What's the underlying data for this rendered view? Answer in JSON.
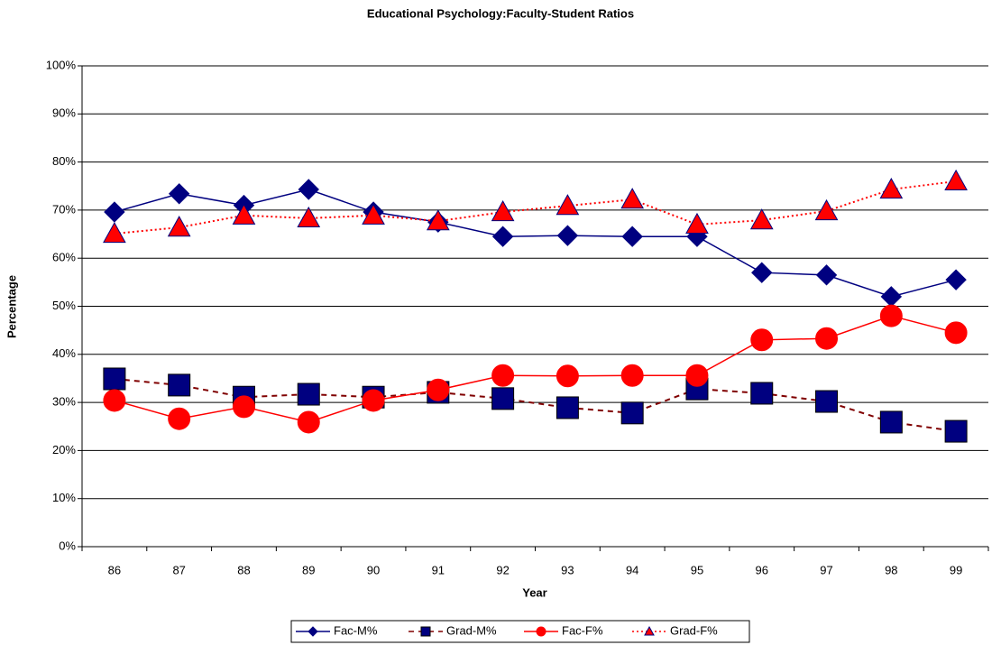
{
  "chart_data": {
    "type": "line",
    "title": "Educational Psychology:Faculty-Student Ratios",
    "x_label": "Year",
    "y_label": "Percentage",
    "categories": [
      "86",
      "87",
      "88",
      "89",
      "90",
      "91",
      "92",
      "93",
      "94",
      "95",
      "96",
      "97",
      "98",
      "99"
    ],
    "series": [
      {
        "name": "Fac-M%",
        "color": "#000080",
        "line_color": "#000080",
        "line_style": "solid",
        "marker": "diamond",
        "values": [
          69.6,
          73.4,
          71,
          74.3,
          69.6,
          67.5,
          64.5,
          64.7,
          64.5,
          64.5,
          57,
          56.5,
          52,
          55.5
        ]
      },
      {
        "name": "Grad-M%",
        "color": "#000080",
        "line_color": "#800000",
        "line_style": "dashed",
        "marker": "square",
        "values": [
          34.9,
          33.6,
          31.1,
          31.7,
          31.1,
          32.1,
          30.8,
          28.9,
          27.8,
          32.8,
          31.9,
          30.2,
          25.9,
          24
        ]
      },
      {
        "name": "Fac-F%",
        "color": "#ff0000",
        "line_color": "#ff0000",
        "line_style": "solid",
        "marker": "circle",
        "values": [
          30.4,
          26.6,
          29.1,
          25.9,
          30.4,
          32.6,
          35.6,
          35.5,
          35.6,
          35.6,
          43,
          43.3,
          48,
          44.5
        ]
      },
      {
        "name": "Grad-F%",
        "color": "#ff0000",
        "line_color": "#ff0000",
        "line_style": "dotted",
        "marker": "triangle",
        "values": [
          65.1,
          66.4,
          68.9,
          68.3,
          68.9,
          67.7,
          69.6,
          70.9,
          72.2,
          67,
          67.9,
          69.8,
          74.3,
          76
        ]
      }
    ],
    "ylim": [
      0,
      100
    ],
    "yticks": [
      {
        "value": 0,
        "label": "0%"
      },
      {
        "value": 10,
        "label": "10%"
      },
      {
        "value": 20,
        "label": "20%"
      },
      {
        "value": 30,
        "label": "30%"
      },
      {
        "value": 40,
        "label": "40%"
      },
      {
        "value": 50,
        "label": "50%"
      },
      {
        "value": 60,
        "label": "60%"
      },
      {
        "value": 70,
        "label": "70%"
      },
      {
        "value": 80,
        "label": "80%"
      },
      {
        "value": 90,
        "label": "90%"
      },
      {
        "value": 100,
        "label": "100%"
      }
    ],
    "grid": true,
    "legend": "bottom"
  }
}
